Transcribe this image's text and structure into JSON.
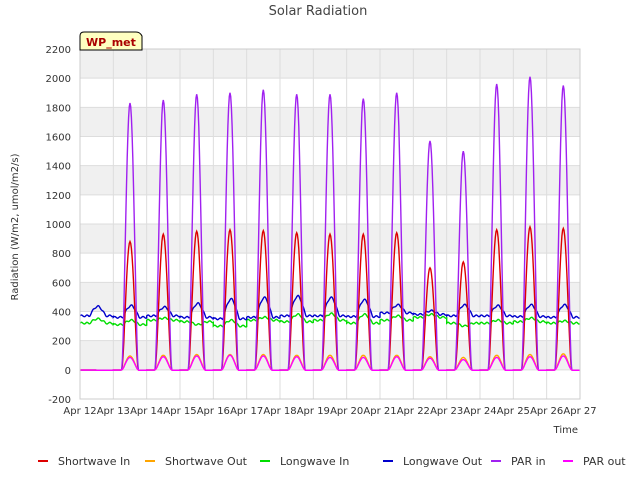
{
  "chart_data": {
    "type": "line",
    "title": "Solar Radiation",
    "xlabel": "Time",
    "ylabel": "Radiation (W/m2, umol/m2/s)",
    "site_label": "WP_met",
    "ylim": [
      -200,
      2200
    ],
    "yticks": [
      -200,
      0,
      200,
      400,
      600,
      800,
      1000,
      1200,
      1400,
      1600,
      1800,
      2000,
      2200
    ],
    "xlim_days": [
      12,
      27
    ],
    "xticks": [
      "Apr 12",
      "Apr 13",
      "Apr 14",
      "Apr 15",
      "Apr 16",
      "Apr 17",
      "Apr 18",
      "Apr 19",
      "Apr 20",
      "Apr 21",
      "Apr 22",
      "Apr 23",
      "Apr 24",
      "Apr 25",
      "Apr 26",
      "Apr 27"
    ],
    "grid": true,
    "legend_position": "bottom",
    "day_labels": [
      "Apr 12",
      "Apr 13",
      "Apr 14",
      "Apr 15",
      "Apr 16",
      "Apr 17",
      "Apr 18",
      "Apr 19",
      "Apr 20",
      "Apr 21",
      "Apr 22",
      "Apr 23",
      "Apr 24",
      "Apr 25",
      "Apr 26"
    ],
    "series": [
      {
        "name": "Shortwave In",
        "color": "#dd0000",
        "kind": "diurnal",
        "daily_peaks": [
          null,
          880,
          930,
          950,
          960,
          955,
          940,
          930,
          930,
          940,
          700,
          740,
          960,
          980,
          970
        ]
      },
      {
        "name": "Shortwave Out",
        "color": "#ffa500",
        "kind": "diurnal",
        "daily_peaks": [
          null,
          95,
          100,
          105,
          105,
          105,
          100,
          100,
          100,
          100,
          90,
          85,
          100,
          105,
          110
        ]
      },
      {
        "name": "Longwave In",
        "color": "#00dd00",
        "kind": "continuous",
        "daily_base": [
          320,
          310,
          340,
          330,
          300,
          340,
          330,
          340,
          320,
          340,
          360,
          320,
          320,
          330,
          320,
          290
        ],
        "daily_peaks": [
          350,
          340,
          355,
          310,
          340,
          360,
          380,
          385,
          380,
          370,
          380,
          300,
          340,
          355,
          335
        ]
      },
      {
        "name": "Longwave Out",
        "color": "#0000cc",
        "kind": "continuous",
        "daily_base": [
          370,
          360,
          370,
          360,
          350,
          360,
          370,
          370,
          365,
          390,
          380,
          370,
          370,
          365,
          360,
          350
        ],
        "daily_peaks": [
          435,
          440,
          430,
          455,
          485,
          495,
          505,
          495,
          480,
          445,
          405,
          445,
          440,
          445,
          445
        ]
      },
      {
        "name": "PAR in",
        "color": "#a020f0",
        "kind": "diurnal",
        "daily_peaks": [
          null,
          1830,
          1850,
          1890,
          1900,
          1920,
          1890,
          1890,
          1860,
          1900,
          1570,
          1500,
          1960,
          2010,
          1950
        ]
      },
      {
        "name": "PAR out",
        "color": "#ff00ff",
        "kind": "diurnal",
        "daily_peaks": [
          null,
          85,
          90,
          95,
          100,
          95,
          90,
          85,
          85,
          90,
          80,
          70,
          85,
          90,
          95
        ]
      }
    ]
  }
}
